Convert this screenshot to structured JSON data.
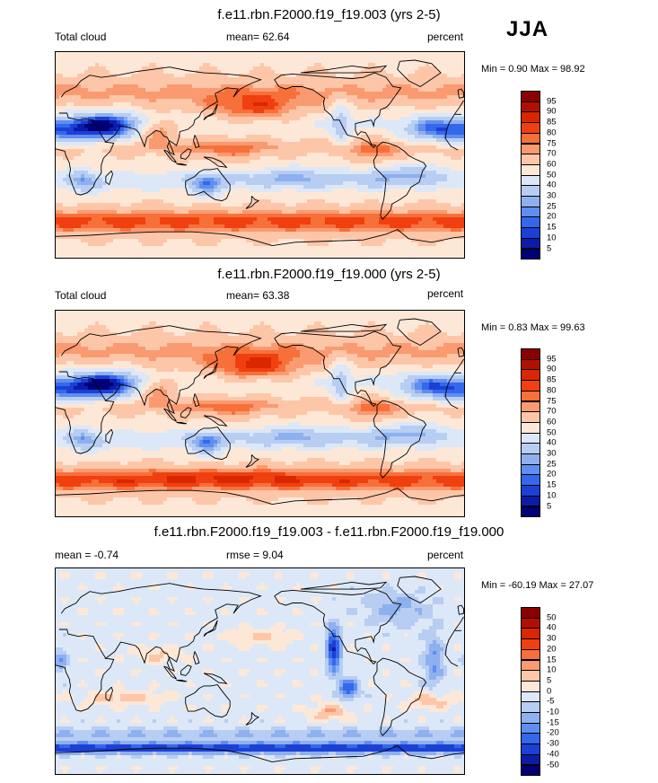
{
  "season": "JJA",
  "panels": [
    {
      "title": "f.e11.rbn.F2000.f19_f19.003 (yrs 2-5)",
      "left_label": "Total cloud",
      "center_label": "mean=  62.64",
      "right_label": "percent",
      "minmax": "Min =   0.90 Max =  98.92",
      "levels": [
        "95",
        "90",
        "85",
        "80",
        "75",
        "70",
        "60",
        "50",
        "40",
        "30",
        "25",
        "20",
        "15",
        "10",
        "5"
      ],
      "colors": [
        "#8b0000",
        "#b30f00",
        "#d92800",
        "#f04010",
        "#f7703a",
        "#fa9a70",
        "#fdc6a8",
        "#fde8d8",
        "#dce8f7",
        "#b8cdf2",
        "#8eb0ef",
        "#5f8ef0",
        "#3468ec",
        "#1c40d6",
        "#0c1ca8",
        "#000077"
      ],
      "scheme": "abs"
    },
    {
      "title": "f.e11.rbn.F2000.f19_f19.000 (yrs 2-5)",
      "left_label": "Total cloud",
      "center_label": "mean=  63.38",
      "right_label": "percent",
      "minmax": "Min =   0.83 Max =  99.63",
      "levels": [
        "95",
        "90",
        "85",
        "80",
        "75",
        "70",
        "60",
        "50",
        "40",
        "30",
        "25",
        "20",
        "15",
        "10",
        "5"
      ],
      "colors": [
        "#8b0000",
        "#b30f00",
        "#d92800",
        "#f04010",
        "#f7703a",
        "#fa9a70",
        "#fdc6a8",
        "#fde8d8",
        "#dce8f7",
        "#b8cdf2",
        "#8eb0ef",
        "#5f8ef0",
        "#3468ec",
        "#1c40d6",
        "#0c1ca8",
        "#000077"
      ],
      "scheme": "abs2"
    },
    {
      "title": "f.e11.rbn.F2000.f19_f19.003 - f.e11.rbn.F2000.f19_f19.000",
      "left_label": "mean =  -0.74",
      "center_label": "rmse =   9.04",
      "right_label": "percent",
      "minmax": "Min = -60.19 Max =  27.07",
      "levels": [
        "50",
        "40",
        "30",
        "20",
        "15",
        "10",
        "5",
        "0",
        "-5",
        "-10",
        "-15",
        "-20",
        "-30",
        "-40",
        "-50"
      ],
      "colors": [
        "#8b0000",
        "#b30f00",
        "#d92800",
        "#f04010",
        "#f7703a",
        "#fa9a70",
        "#fdc6a8",
        "#fde8d8",
        "#dce8f7",
        "#b8cdf2",
        "#8eb0ef",
        "#5f8ef0",
        "#3468ec",
        "#1c40d6",
        "#0c1ca8",
        "#000077"
      ],
      "scheme": "diff"
    }
  ],
  "chart_data": [
    {
      "type": "heatmap",
      "title": "f.e11.rbn.F2000.f19_f19.003 (yrs 2-5)",
      "variable": "Total cloud",
      "units": "percent",
      "mean": 62.64,
      "min": 0.9,
      "max": 98.92,
      "contour_levels": [
        5,
        10,
        15,
        20,
        25,
        30,
        40,
        50,
        60,
        70,
        75,
        80,
        85,
        90,
        95
      ]
    },
    {
      "type": "heatmap",
      "title": "f.e11.rbn.F2000.f19_f19.000 (yrs 2-5)",
      "variable": "Total cloud",
      "units": "percent",
      "mean": 63.38,
      "min": 0.83,
      "max": 99.63,
      "contour_levels": [
        5,
        10,
        15,
        20,
        25,
        30,
        40,
        50,
        60,
        70,
        75,
        80,
        85,
        90,
        95
      ]
    },
    {
      "type": "heatmap",
      "title": "f.e11.rbn.F2000.f19_f19.003 - f.e11.rbn.F2000.f19_f19.000",
      "units": "percent",
      "mean": -0.74,
      "rmse": 9.04,
      "min": -60.19,
      "max": 27.07,
      "contour_levels": [
        -50,
        -40,
        -30,
        -20,
        -15,
        -10,
        -5,
        0,
        5,
        10,
        15,
        20,
        30,
        40,
        50
      ]
    }
  ]
}
